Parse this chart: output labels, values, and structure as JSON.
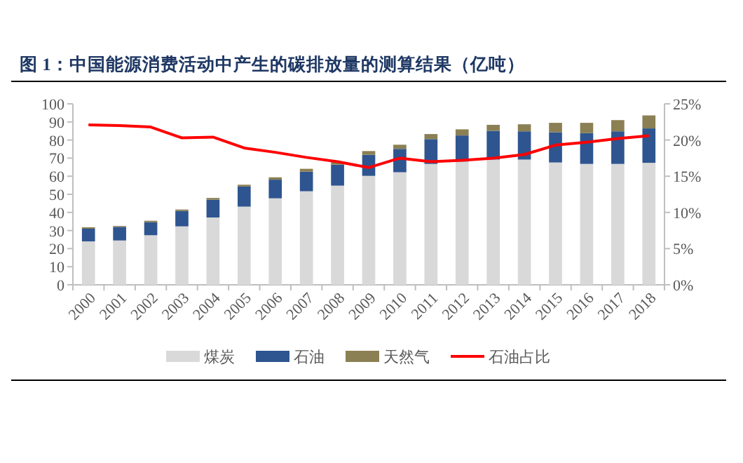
{
  "chart_data": {
    "type": "bar",
    "stacked": true,
    "title": "图 1：中国能源消费活动中产生的碳排放量的测算结果（亿吨）",
    "categories": [
      "2000",
      "2001",
      "2002",
      "2003",
      "2004",
      "2005",
      "2006",
      "2007",
      "2008",
      "2009",
      "2010",
      "2011",
      "2012",
      "2013",
      "2014",
      "2015",
      "2016",
      "2017",
      "2018"
    ],
    "series": [
      {
        "name": "煤炭",
        "color": "#d9d9d9",
        "values": [
          24,
          24.5,
          27.4,
          32.3,
          37.2,
          43.2,
          47.8,
          51.7,
          54.8,
          60.2,
          62.2,
          66.8,
          68.1,
          69.2,
          69.2,
          67.6,
          66.8,
          66.8,
          67.4
        ]
      },
      {
        "name": "石油",
        "color": "#2e5590",
        "values": [
          7,
          7.5,
          7.2,
          8.5,
          9.8,
          11.1,
          10.3,
          10.8,
          11.6,
          11.6,
          12.9,
          13.7,
          14.4,
          15.9,
          15.6,
          16.7,
          17,
          18,
          19
        ]
      },
      {
        "name": "天然气",
        "color": "#8b8054",
        "values": [
          0.8,
          0.5,
          0.8,
          0.8,
          1,
          1,
          1.3,
          1.6,
          1.6,
          2.1,
          2.3,
          2.8,
          3.4,
          3.3,
          3.9,
          5.2,
          5.7,
          6.2,
          7.2
        ]
      },
      {
        "name": "石油占比",
        "color": "#ff0000",
        "type": "line",
        "axis": "y2",
        "values": [
          22.1,
          22,
          21.8,
          20.3,
          20.4,
          18.9,
          18.3,
          17.6,
          17,
          16.2,
          17.5,
          17,
          17.2,
          17.5,
          18,
          19.3,
          19.7,
          20.2,
          20.6
        ]
      }
    ],
    "ylim": [
      0,
      100
    ],
    "yticks": [
      0,
      10,
      20,
      30,
      40,
      50,
      60,
      70,
      80,
      90,
      100
    ],
    "y2lim": [
      0,
      25
    ],
    "y2ticks": [
      {
        "value": 0,
        "label": "0%"
      },
      {
        "value": 5,
        "label": "5%"
      },
      {
        "value": 10,
        "label": "10%"
      },
      {
        "value": 15,
        "label": "15%"
      },
      {
        "value": 20,
        "label": "20%"
      },
      {
        "value": 25,
        "label": "25%"
      }
    ],
    "legend": "bottom"
  }
}
